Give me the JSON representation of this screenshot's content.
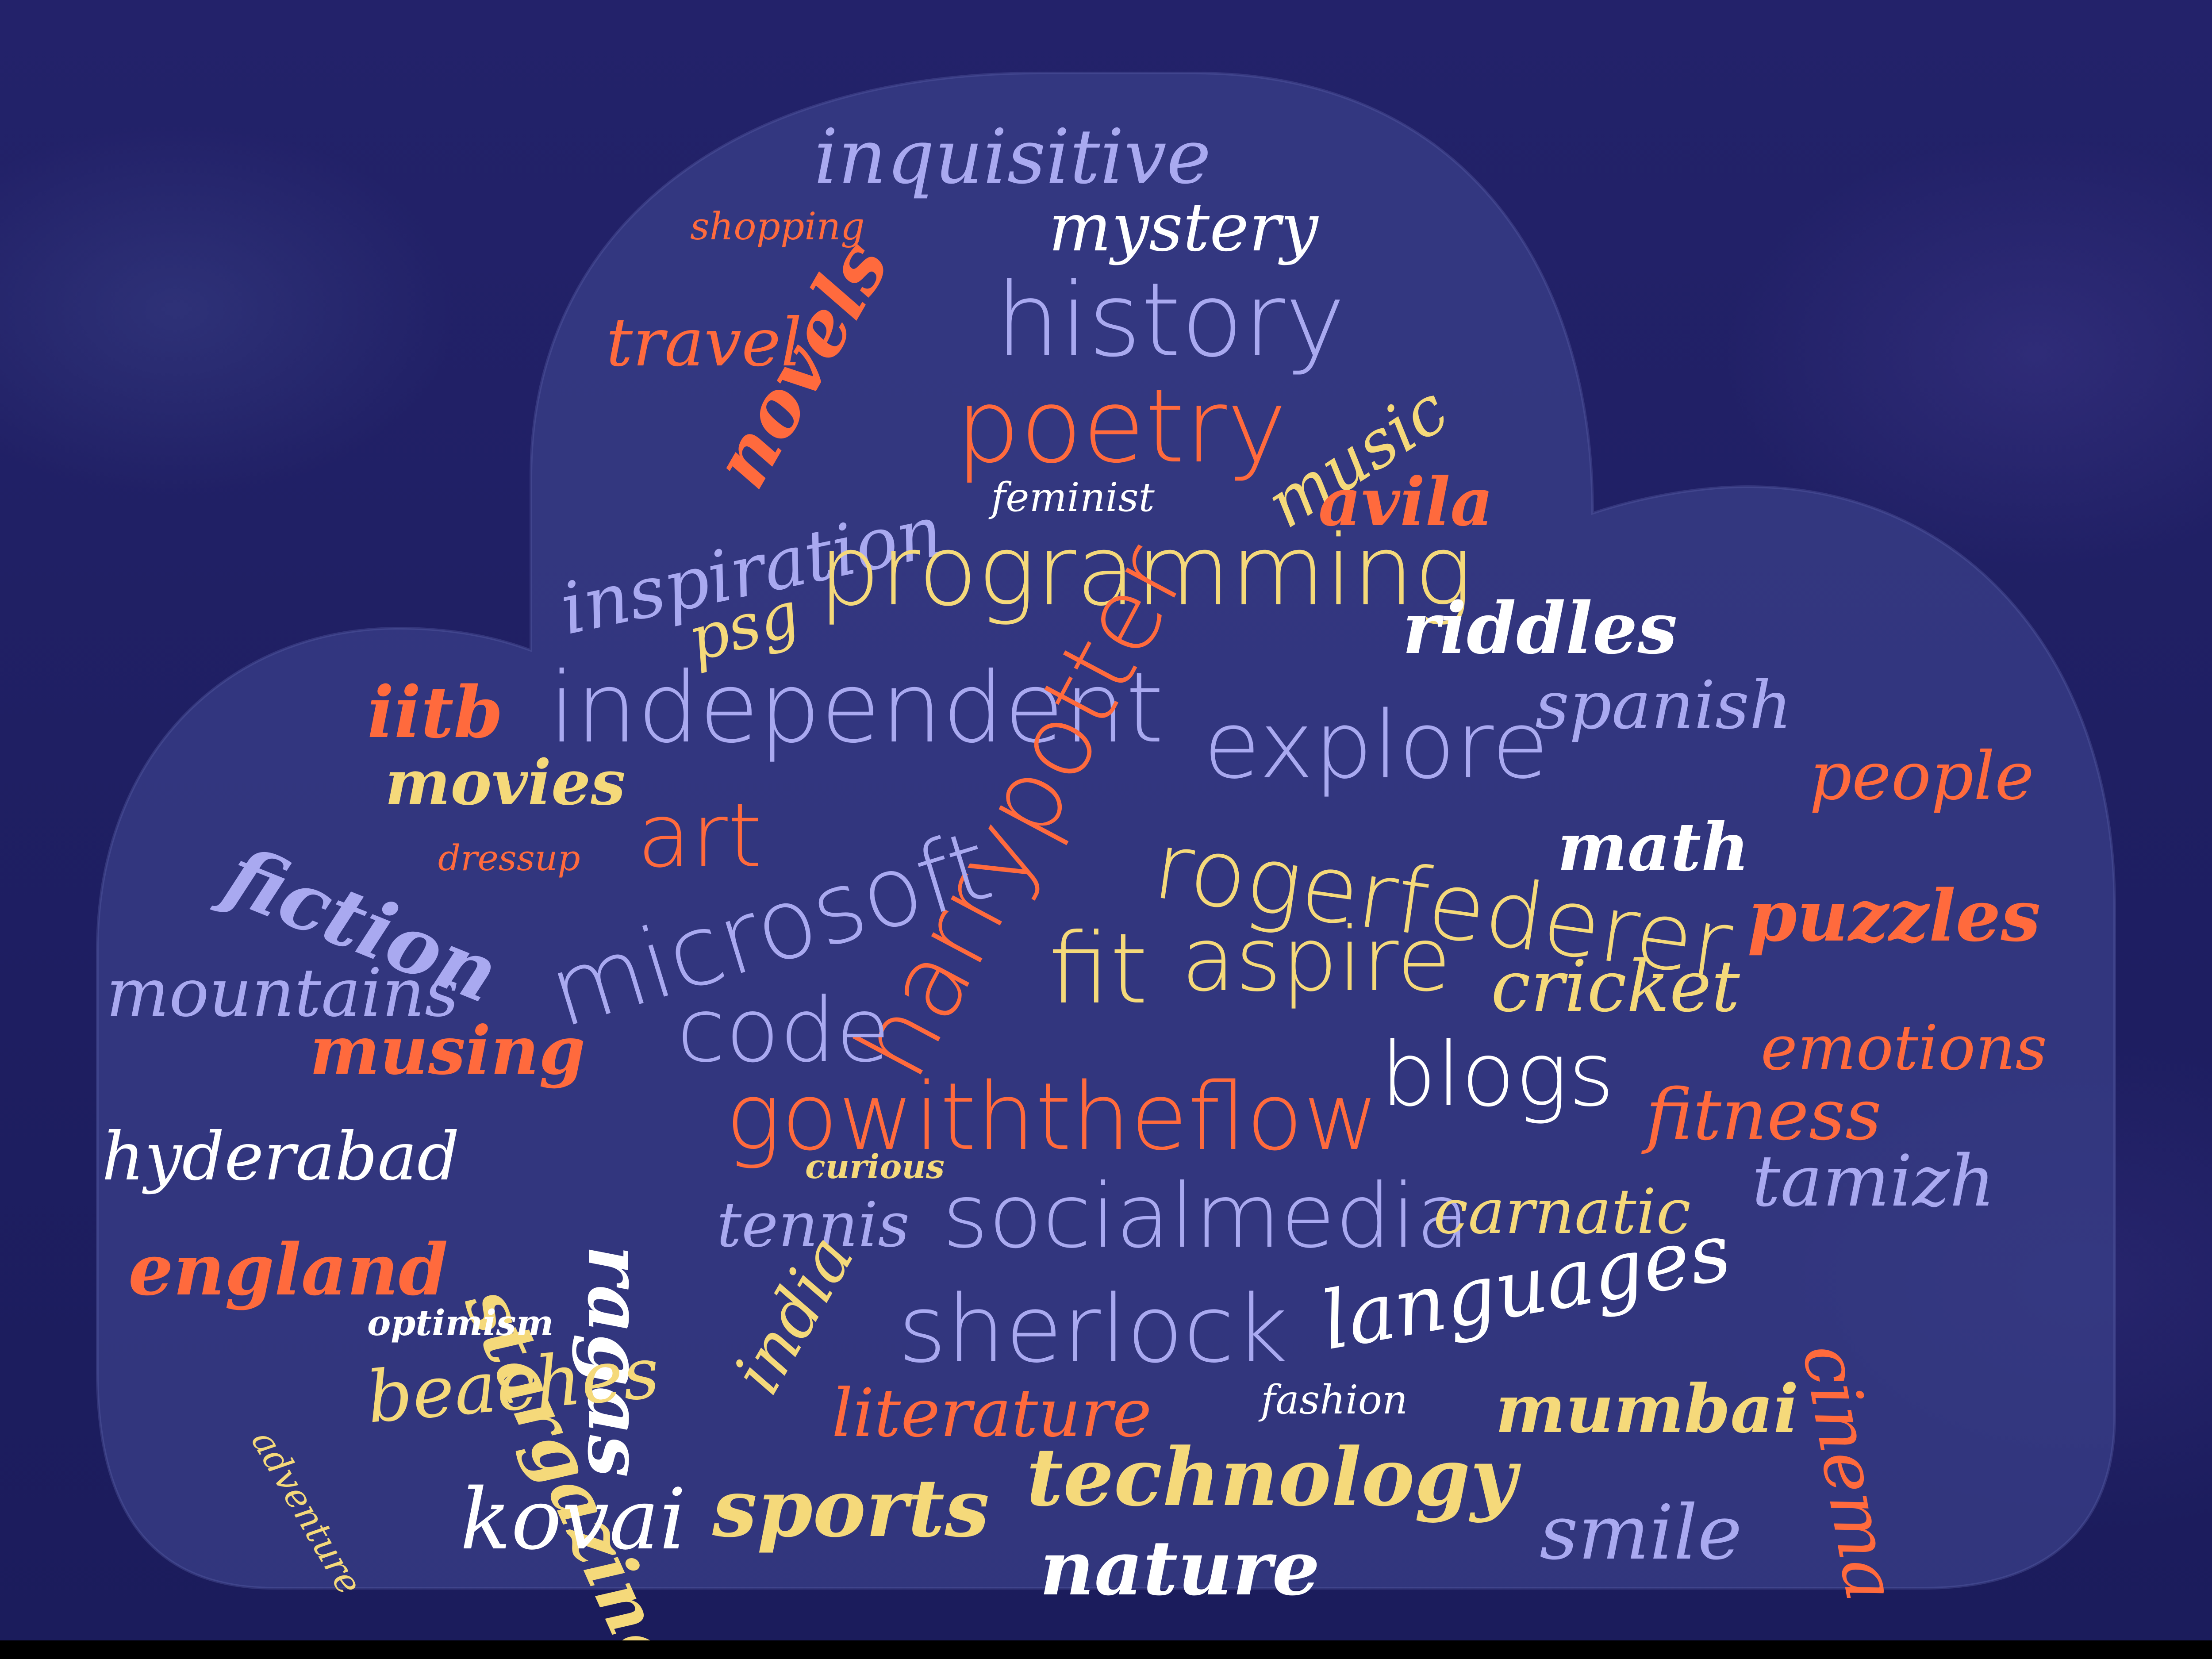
{
  "colors": {
    "background": "#1e1e5e",
    "cloud_fill": "#3a3f88",
    "lavender": "#a9a9f0",
    "orange": "#ff6a3d",
    "yellow": "#f5d97a",
    "white": "#ffffff"
  },
  "words": [
    {
      "text": "inquisitive",
      "color": "lavender"
    },
    {
      "text": "shopping",
      "color": "orange"
    },
    {
      "text": "mystery",
      "color": "white"
    },
    {
      "text": "travel",
      "color": "orange"
    },
    {
      "text": "novels",
      "color": "orange"
    },
    {
      "text": "history",
      "color": "lavender"
    },
    {
      "text": "music",
      "color": "yellow"
    },
    {
      "text": "poetry",
      "color": "orange"
    },
    {
      "text": "inspiration",
      "color": "lavender"
    },
    {
      "text": "feminist",
      "color": "white"
    },
    {
      "text": "avila",
      "color": "orange"
    },
    {
      "text": "psg",
      "color": "yellow"
    },
    {
      "text": "programming",
      "color": "yellow"
    },
    {
      "text": "riddles",
      "color": "white"
    },
    {
      "text": "iitb",
      "color": "orange"
    },
    {
      "text": "independent",
      "color": "lavender"
    },
    {
      "text": "harrypotter",
      "color": "orange"
    },
    {
      "text": "explore",
      "color": "lavender"
    },
    {
      "text": "spanish",
      "color": "lavender"
    },
    {
      "text": "people",
      "color": "orange"
    },
    {
      "text": "movies",
      "color": "yellow"
    },
    {
      "text": "fiction",
      "color": "lavender"
    },
    {
      "text": "dressup",
      "color": "orange"
    },
    {
      "text": "art",
      "color": "orange"
    },
    {
      "text": "microsoft",
      "color": "lavender"
    },
    {
      "text": "rogerfederer",
      "color": "yellow"
    },
    {
      "text": "math",
      "color": "white"
    },
    {
      "text": "puzzles",
      "color": "orange"
    },
    {
      "text": "mountains",
      "color": "lavender"
    },
    {
      "text": "fit",
      "color": "yellow"
    },
    {
      "text": "aspire",
      "color": "yellow"
    },
    {
      "text": "cricket",
      "color": "yellow"
    },
    {
      "text": "code",
      "color": "lavender"
    },
    {
      "text": "musing",
      "color": "orange"
    },
    {
      "text": "emotions",
      "color": "orange"
    },
    {
      "text": "blogs",
      "color": "white"
    },
    {
      "text": "gowiththeflow",
      "color": "orange"
    },
    {
      "text": "fitness",
      "color": "orange"
    },
    {
      "text": "ragas",
      "color": "white"
    },
    {
      "text": "hyderabad",
      "color": "white"
    },
    {
      "text": "stargazing",
      "color": "yellow"
    },
    {
      "text": "curious",
      "color": "yellow"
    },
    {
      "text": "tamizh",
      "color": "lavender"
    },
    {
      "text": "tennis",
      "color": "lavender"
    },
    {
      "text": "socialmedia",
      "color": "lavender"
    },
    {
      "text": "carnatic",
      "color": "yellow"
    },
    {
      "text": "england",
      "color": "orange"
    },
    {
      "text": "cinema",
      "color": "orange"
    },
    {
      "text": "india",
      "color": "yellow"
    },
    {
      "text": "sherlock",
      "color": "lavender"
    },
    {
      "text": "languages",
      "color": "white"
    },
    {
      "text": "optimism",
      "color": "white"
    },
    {
      "text": "adventure",
      "color": "yellow"
    },
    {
      "text": "beaches",
      "color": "yellow"
    },
    {
      "text": "literature",
      "color": "orange"
    },
    {
      "text": "fashion",
      "color": "white"
    },
    {
      "text": "mumbai",
      "color": "yellow"
    },
    {
      "text": "kovai",
      "color": "white"
    },
    {
      "text": "sports",
      "color": "yellow"
    },
    {
      "text": "technology",
      "color": "yellow"
    },
    {
      "text": "smile",
      "color": "lavender"
    },
    {
      "text": "nature",
      "color": "white"
    }
  ]
}
